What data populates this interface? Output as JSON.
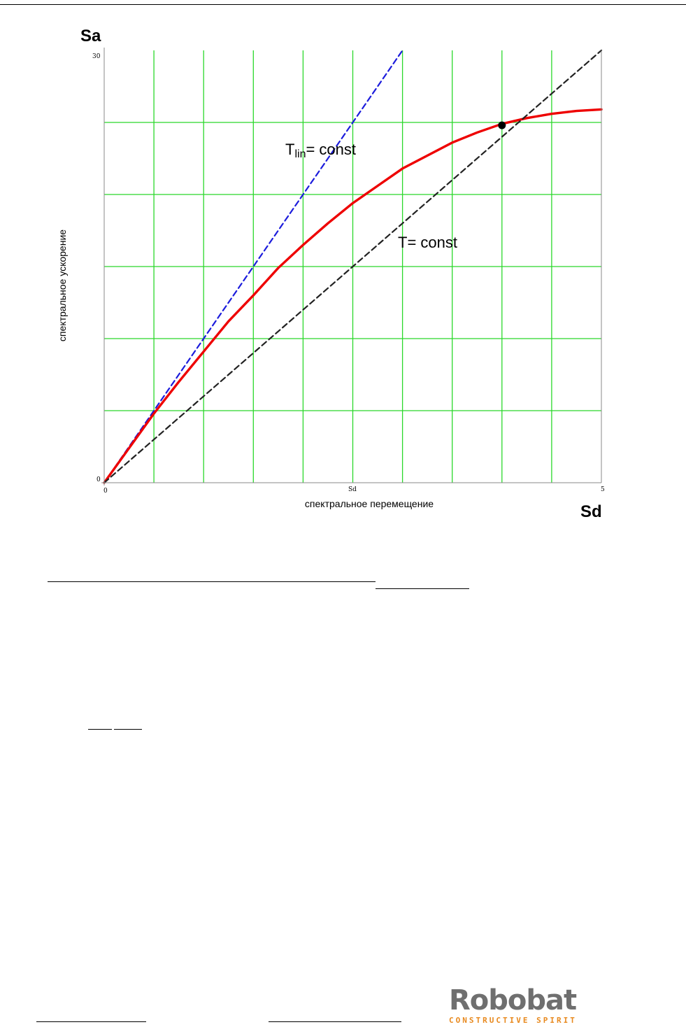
{
  "chart_data": {
    "type": "line",
    "y_axis_symbol": "Sa",
    "x_axis_symbol": "Sd",
    "ylabel": "спектральное ускорение",
    "xlabel": "спектральное перемещение",
    "xlim": [
      0,
      5
    ],
    "ylim": [
      0,
      30
    ],
    "x_tick_labels": {
      "min": "0",
      "mid": "Sd",
      "max": "5"
    },
    "y_tick_labels": {
      "min": "0",
      "max": "30"
    },
    "grid": true,
    "grid_color": "#2bd82b",
    "series": [
      {
        "style": "dashed",
        "color": "#1c1cdc",
        "x": [
          0,
          3.0
        ],
        "y": [
          0,
          30.0
        ]
      },
      {
        "style": "solid",
        "color": "#ee0000",
        "x": [
          0,
          0.25,
          0.5,
          0.75,
          1.0,
          1.25,
          1.5,
          1.75,
          2.0,
          2.25,
          2.5,
          2.75,
          3.0,
          3.25,
          3.5,
          3.75,
          4.0,
          4.25,
          4.5,
          4.75,
          5.0
        ],
        "y": [
          0,
          2.4,
          4.8,
          7.0,
          9.1,
          11.2,
          13.0,
          14.9,
          16.5,
          18.0,
          19.4,
          20.6,
          21.8,
          22.7,
          23.6,
          24.3,
          24.9,
          25.3,
          25.6,
          25.8,
          25.9
        ]
      },
      {
        "style": "dashed",
        "color": "#222222",
        "x": [
          0,
          5.0
        ],
        "y": [
          0,
          30.0
        ]
      }
    ],
    "intersection_point": {
      "x": 4.0,
      "y": 24.8
    },
    "annotations": {
      "tlin": {
        "base": "T",
        "sub": "lin",
        "rest": "= const"
      },
      "t": "T= const"
    }
  },
  "logo": {
    "word": "Robobat",
    "tagline": "CONSTRUCTIVE SPIRIT"
  }
}
